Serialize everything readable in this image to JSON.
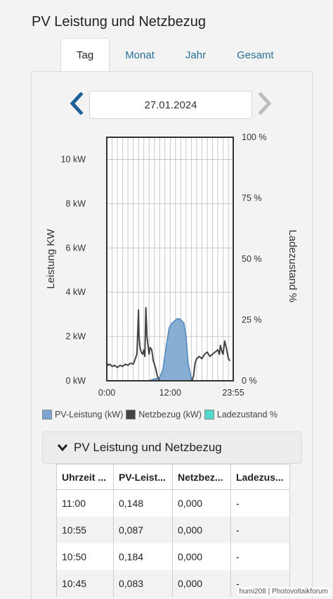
{
  "page": {
    "title": "PV Leistung und Netzbezug"
  },
  "tabs": [
    {
      "label": "Tag",
      "active": true
    },
    {
      "label": "Monat",
      "active": false
    },
    {
      "label": "Jahr",
      "active": false
    },
    {
      "label": "Gesamt",
      "active": false
    }
  ],
  "date_nav": {
    "date": "27.01.2024",
    "prev_icon": "chevron-left-icon",
    "next_icon": "chevron-right-icon"
  },
  "chart_data": {
    "type": "area",
    "ylabel": "Leistung KW",
    "y2label": "Ladezustand %",
    "ylim": [
      0,
      11
    ],
    "y_ticks": [
      "0 kW",
      "2 kW",
      "4 kW",
      "6 kW",
      "8 kW",
      "10 kW"
    ],
    "y_tick_values": [
      0,
      2,
      4,
      6,
      8,
      10
    ],
    "y2_ticks": [
      "0 %",
      "25 %",
      "50 %",
      "75 %",
      "100 %"
    ],
    "y2_tick_values": [
      0,
      25,
      50,
      75,
      100
    ],
    "x_ticks": [
      "0:00",
      "12:00",
      "23:55"
    ],
    "x_tick_values": [
      0,
      12,
      23.92
    ],
    "xlim": [
      0,
      23.92
    ],
    "grid": true,
    "series": [
      {
        "name": "PV-Leistung (kW)",
        "color": "#7aa6cf",
        "x": [
          0,
          7.8,
          8.6,
          9.3,
          10.0,
          10.6,
          11.2,
          11.8,
          12.3,
          12.8,
          13.3,
          13.8,
          14.2,
          14.6,
          15.0,
          15.4,
          16.0,
          16.5,
          23.92
        ],
        "y": [
          0,
          0,
          0.05,
          0.1,
          0.15,
          0.5,
          1.5,
          2.4,
          2.6,
          2.7,
          2.8,
          2.8,
          2.7,
          2.6,
          2.0,
          0.8,
          0.1,
          0,
          0
        ]
      },
      {
        "name": "Netzbezug (kW)",
        "color": "#444444",
        "x": [
          0,
          0.3,
          0.6,
          1.0,
          1.5,
          2.0,
          2.5,
          3.0,
          3.5,
          4.0,
          4.5,
          5.0,
          5.4,
          5.7,
          5.9,
          6.0,
          6.1,
          6.3,
          6.5,
          6.8,
          7.0,
          7.2,
          7.4,
          7.6,
          7.8,
          8.0,
          8.2,
          8.5,
          8.8,
          9.2,
          9.6,
          10.0,
          11.0,
          12.0,
          13.0,
          14.0,
          15.0,
          16.0,
          16.4,
          16.7,
          17.0,
          17.5,
          18.0,
          18.5,
          19.0,
          19.5,
          20.0,
          20.5,
          21.0,
          21.3,
          21.5,
          21.8,
          22.0,
          22.3,
          22.6,
          23.0,
          23.3
        ],
        "y": [
          0.8,
          0.7,
          0.75,
          0.65,
          0.7,
          0.6,
          0.7,
          0.65,
          0.75,
          0.7,
          0.8,
          0.75,
          1.0,
          1.2,
          2.5,
          3.2,
          2.0,
          1.5,
          1.3,
          1.2,
          1.4,
          1.1,
          3.3,
          2.0,
          1.6,
          1.2,
          1.5,
          1.4,
          0.9,
          0.6,
          0.2,
          0,
          0,
          0,
          0,
          0,
          0,
          0,
          0.2,
          0.8,
          1.0,
          1.1,
          1.0,
          1.2,
          1.3,
          1.1,
          1.2,
          1.3,
          1.4,
          1.2,
          1.6,
          1.3,
          1.2,
          1.8,
          1.5,
          1.0,
          0.9
        ]
      },
      {
        "name": "Ladezustand %",
        "color": "#4fd9c9",
        "x": [
          0,
          23.92
        ],
        "y": [
          0,
          0
        ]
      }
    ]
  },
  "accordion": {
    "title": "PV Leistung und Netzbezug",
    "icon": "chevron-down-icon"
  },
  "table": {
    "headers": [
      "Uhrzeit ...",
      "PV-Leist...",
      "Netzbez...",
      "Ladezus..."
    ],
    "rows": [
      [
        "11:00",
        "0,148",
        "0,000",
        "-"
      ],
      [
        "10:55",
        "0,087",
        "0,000",
        "-"
      ],
      [
        "10:50",
        "0,184",
        "0,000",
        "-"
      ],
      [
        "10:45",
        "0,083",
        "0,000",
        "-"
      ]
    ]
  },
  "watermark": "humi208 | Photovoltaikforum"
}
